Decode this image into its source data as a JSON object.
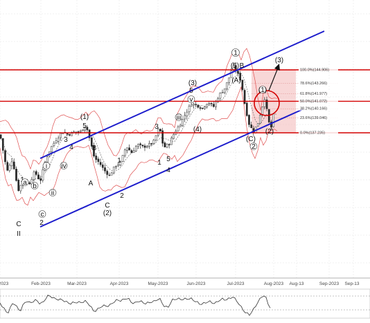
{
  "chart_data": {
    "type": "candlestick",
    "x_axis": {
      "ticks": [
        "2023",
        "Feb-2023",
        "Mar-2023",
        "Apr-2023",
        "May-2023",
        "Jun-2023",
        "Jul-2023",
        "Aug-2023",
        "Aug-13",
        "Sep-2023",
        "Sep-13"
      ]
    },
    "price_range": [
      131.0,
      149.0
    ],
    "horizontal_levels": [
      144.906,
      141.072,
      137.235
    ],
    "fib_levels": [
      {
        "ratio": "100.0%",
        "value": 144.906,
        "label": "100.0%(144.906)"
      },
      {
        "ratio": "78.6%",
        "value": 143.266,
        "label": "78.6%(143.266)"
      },
      {
        "ratio": "61.8%",
        "value": 141.977,
        "label": "61.8%(141.977)"
      },
      {
        "ratio": "50.0%",
        "value": 141.072,
        "label": "50.0%(141.072)"
      },
      {
        "ratio": "38.2%",
        "value": 140.166,
        "label": "38.2%(140.166)"
      },
      {
        "ratio": "23.6%",
        "value": 139.046,
        "label": "23.6%(139.046)"
      },
      {
        "ratio": "0.0%",
        "value": 137.235,
        "label": "0.0%(137.235)"
      }
    ],
    "wave_labels": [
      "C",
      "II",
      "1",
      "2",
      "3",
      "4",
      "5",
      "(1)",
      "A",
      "B",
      "C",
      "(2)",
      "1",
      "2",
      "3",
      "4",
      "5",
      "(3)",
      "(4)",
      "1",
      "5",
      "(5)",
      "(A)",
      "B",
      "(C)",
      "2",
      "(1)",
      "(2)",
      "(3)",
      "i",
      "ii",
      "iii",
      "iv",
      "v",
      "a",
      "b",
      "c"
    ],
    "grid": true,
    "indicator": "RSI"
  },
  "colors": {
    "candle_up": "#2a2a2a",
    "candle_down": "#2a2a2a",
    "channel": "#1c1ccc",
    "horizontal": "#d40000",
    "bollinger": "#e05050",
    "ma": "#555555",
    "fib_zone": "#f2b6b6",
    "rsi": "#333333"
  }
}
